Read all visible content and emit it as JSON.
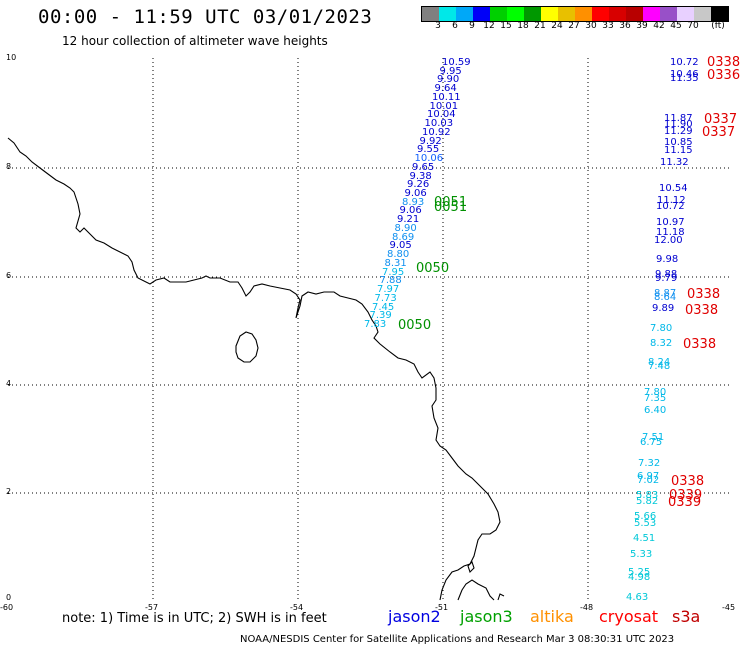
{
  "header": {
    "title": "00:00 - 11:59 UTC 03/01/2023",
    "subtitle": "12 hour collection of altimeter wave heights"
  },
  "colorbar": {
    "colors": [
      "#808080",
      "#00e8e8",
      "#00a8f8",
      "#0000f8",
      "#00d000",
      "#00ff00",
      "#009800",
      "#ffff00",
      "#e8c000",
      "#ff9000",
      "#ff0000",
      "#d80000",
      "#b80000",
      "#ff00ff",
      "#9850c8",
      "#e8d0ff",
      "#c8c8c8",
      "#000000"
    ],
    "labels": [
      "3",
      "6",
      "9",
      "12",
      "15",
      "18",
      "21",
      "24",
      "27",
      "30",
      "33",
      "36",
      "39",
      "42",
      "45",
      "70",
      "(ft)"
    ]
  },
  "axes": {
    "y_ticks": [
      "10",
      "8",
      "6",
      "4",
      "2",
      "0"
    ],
    "x_ticks": [
      "-60",
      "-57",
      "-54",
      "-51",
      "-48",
      "-45"
    ]
  },
  "footer": {
    "note": "note: 1) Time is in UTC; 2) SWH is in feet",
    "satellites": [
      {
        "name": "jason2",
        "color": "#0000e0"
      },
      {
        "name": "jason3",
        "color": "#00a000"
      },
      {
        "name": "altika",
        "color": "#ff9000"
      },
      {
        "name": "cryosat",
        "color": "#ff0000"
      },
      {
        "name": "s3a",
        "color": "#c00000"
      }
    ],
    "credit": "NOAA/NESDIS Center for Satellite Applications and Research   Mar  3 08:30:31 UTC 2023"
  },
  "track_diag": [
    {
      "v": "10.59",
      "c": "#0000d0"
    },
    {
      "v": "9.95",
      "c": "#0000d0"
    },
    {
      "v": "9.90",
      "c": "#0000d0"
    },
    {
      "v": "9.64",
      "c": "#0000d0"
    },
    {
      "v": "10.11",
      "c": "#0000d0"
    },
    {
      "v": "10.01",
      "c": "#0000d0"
    },
    {
      "v": "10.04",
      "c": "#0000d0"
    },
    {
      "v": "10.03",
      "c": "#0000d0"
    },
    {
      "v": "10.92",
      "c": "#0000d0"
    },
    {
      "v": "9.92",
      "c": "#0000d0"
    },
    {
      "v": "9.55",
      "c": "#0000d0"
    },
    {
      "v": "10.06",
      "c": "#1060ff"
    },
    {
      "v": "9.65",
      "c": "#0000d0"
    },
    {
      "v": "9.38",
      "c": "#0000d0"
    },
    {
      "v": "9.26",
      "c": "#0000d0"
    },
    {
      "v": "9.06",
      "c": "#0000d0"
    },
    {
      "v": "8.93",
      "c": "#1090f0"
    },
    {
      "v": "9.06",
      "c": "#0000d0"
    },
    {
      "v": "9.21",
      "c": "#0000d0"
    },
    {
      "v": "8.90",
      "c": "#1090f0"
    },
    {
      "v": "8.69",
      "c": "#1090f0"
    },
    {
      "v": "9.05",
      "c": "#0000d0"
    },
    {
      "v": "8.80",
      "c": "#1090f0"
    },
    {
      "v": "8.31",
      "c": "#1090f0"
    },
    {
      "v": "7.95",
      "c": "#00b8e8"
    },
    {
      "v": "7.88",
      "c": "#1090f0"
    },
    {
      "v": "7.97",
      "c": "#00b8e8"
    },
    {
      "v": "7.73",
      "c": "#00b8e8"
    },
    {
      "v": "7.45",
      "c": "#00b8e8"
    },
    {
      "v": "7.39",
      "c": "#00b8e8"
    },
    {
      "v": "7.83",
      "c": "#00b8e8"
    }
  ],
  "track_time_labels": [
    {
      "v": "0051",
      "c": "#009000"
    },
    {
      "v": "0051",
      "c": "#009000"
    },
    {
      "v": "0050",
      "c": "#009000"
    },
    {
      "v": "0050",
      "c": "#009000"
    }
  ],
  "track_right": [
    {
      "v": "10.72",
      "c": "#0000d0"
    },
    {
      "v": "10.46",
      "c": "#0000d0"
    },
    {
      "v": "11.35",
      "c": "#0000d0"
    },
    {
      "v": "11.87",
      "c": "#0000d0"
    },
    {
      "v": "11.90",
      "c": "#0000d0"
    },
    {
      "v": "11.29",
      "c": "#0000d0"
    },
    {
      "v": "10.85",
      "c": "#0000d0"
    },
    {
      "v": "11.15",
      "c": "#0000d0"
    },
    {
      "v": "11.32",
      "c": "#0000d0"
    },
    {
      "v": "10.54",
      "c": "#0000d0"
    },
    {
      "v": "11.12",
      "c": "#0000d0"
    },
    {
      "v": "10.72",
      "c": "#0000d0"
    },
    {
      "v": "10.97",
      "c": "#0000d0"
    },
    {
      "v": "11.18",
      "c": "#0000d0"
    },
    {
      "v": "12.00",
      "c": "#0000d0"
    },
    {
      "v": "9.98",
      "c": "#0000d0"
    },
    {
      "v": "9.88",
      "c": "#0000d0"
    },
    {
      "v": "9.79",
      "c": "#0000d0"
    },
    {
      "v": "8.87",
      "c": "#1090f0"
    },
    {
      "v": "8.64",
      "c": "#1090f0"
    },
    {
      "v": "9.89",
      "c": "#0000d0"
    },
    {
      "v": "7.80",
      "c": "#00b8e8"
    },
    {
      "v": "8.32",
      "c": "#00b8e8"
    },
    {
      "v": "8.24",
      "c": "#00b8e8"
    },
    {
      "v": "7.48",
      "c": "#00b8e8"
    },
    {
      "v": "7.80",
      "c": "#00b8e8"
    },
    {
      "v": "7.35",
      "c": "#00b8e8"
    },
    {
      "v": "6.40",
      "c": "#00b8e8"
    },
    {
      "v": "7.51",
      "c": "#00b8e8"
    },
    {
      "v": "6.75",
      "c": "#00b8e8"
    },
    {
      "v": "7.32",
      "c": "#00b8e8"
    },
    {
      "v": "6.97",
      "c": "#00b8e8"
    },
    {
      "v": "7.02",
      "c": "#00b8e8"
    },
    {
      "v": "5.83",
      "c": "#00c8d8"
    },
    {
      "v": "5.82",
      "c": "#00c8d8"
    },
    {
      "v": "5.66",
      "c": "#00c8d8"
    },
    {
      "v": "5.53",
      "c": "#00c8d8"
    },
    {
      "v": "4.51",
      "c": "#00c8d8"
    },
    {
      "v": "5.33",
      "c": "#00c8d8"
    },
    {
      "v": "5.25",
      "c": "#00c8d8"
    },
    {
      "v": "4.98",
      "c": "#00c8d8"
    },
    {
      "v": "4.63",
      "c": "#00c8d8"
    }
  ],
  "track_right_times": [
    {
      "v": "0338",
      "c": "#e00000"
    },
    {
      "v": "0336",
      "c": "#e00000"
    },
    {
      "v": "0337",
      "c": "#e00000"
    },
    {
      "v": "0337",
      "c": "#e00000"
    },
    {
      "v": "0338",
      "c": "#e00000"
    },
    {
      "v": "0338",
      "c": "#e00000"
    },
    {
      "v": "0338",
      "c": "#e00000"
    },
    {
      "v": "0338",
      "c": "#e00000"
    },
    {
      "v": "0339",
      "c": "#e00000"
    },
    {
      "v": "0339",
      "c": "#e00000"
    }
  ]
}
